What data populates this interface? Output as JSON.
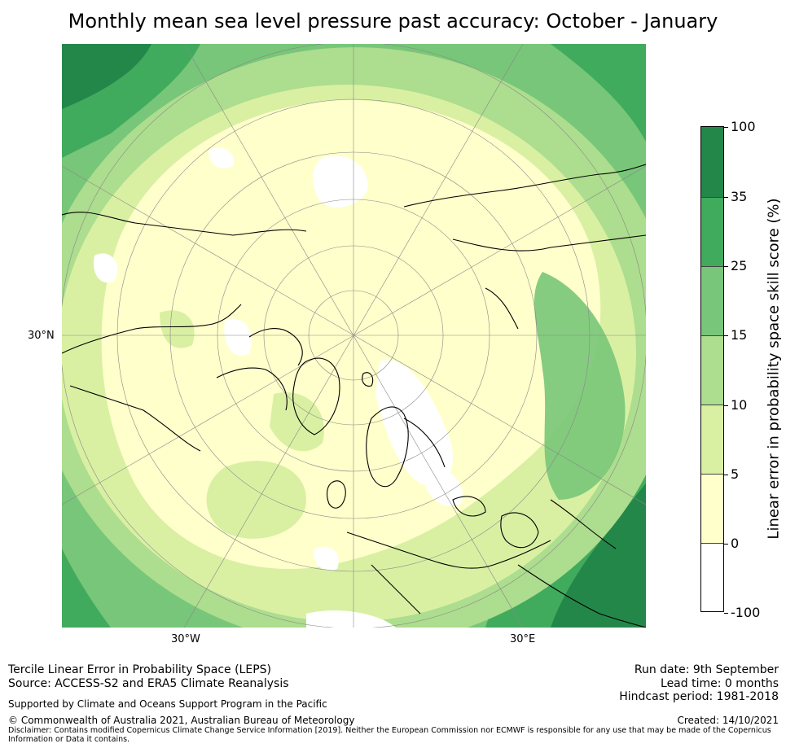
{
  "title": "Monthly mean sea level pressure past accuracy: October - January",
  "axis_labels": {
    "left": "30°N",
    "bottom_left": "30°W",
    "bottom_right": "30°E"
  },
  "colorbar": {
    "label": "Linear error in probability space skill score (%)",
    "ticks": [
      "100",
      "35",
      "25",
      "15",
      "10",
      "5",
      "0",
      "-100"
    ],
    "colors": [
      "#24874a",
      "#41ab5d",
      "#78c679",
      "#addd8e",
      "#d9f0a3",
      "#ffffcc",
      "#ffffff"
    ]
  },
  "palette": {
    "darkest": "#24874a",
    "dark": "#41ab5d",
    "mid": "#78c679",
    "light": "#addd8e",
    "pale": "#d9f0a3",
    "cream": "#ffffcc",
    "white": "#ffffff"
  },
  "footer": {
    "line1": "Tercile Linear Error in Probability Space (LEPS)",
    "line2": "Source: ACCESS-S2 and ERA5 Climate Reanalysis",
    "support": "Supported by Climate and Oceans Support Program in the Pacific",
    "copyright": "© Commonwealth of Australia 2021, Australian Bureau of Meteorology",
    "disclaimer_1": "Disclaimer: Contains modified Copernicus Climate Change Service Information [2019]. Neither the European Commission nor ECMWF is responsible for any use that may be made of the Copernicus",
    "disclaimer_2": "Information or Data it contains.",
    "run_date": "Run date: 9th September",
    "lead_time": "Lead time: 0 months",
    "hindcast": "Hindcast period: 1981-2018",
    "created": "Created: 14/10/2021"
  }
}
